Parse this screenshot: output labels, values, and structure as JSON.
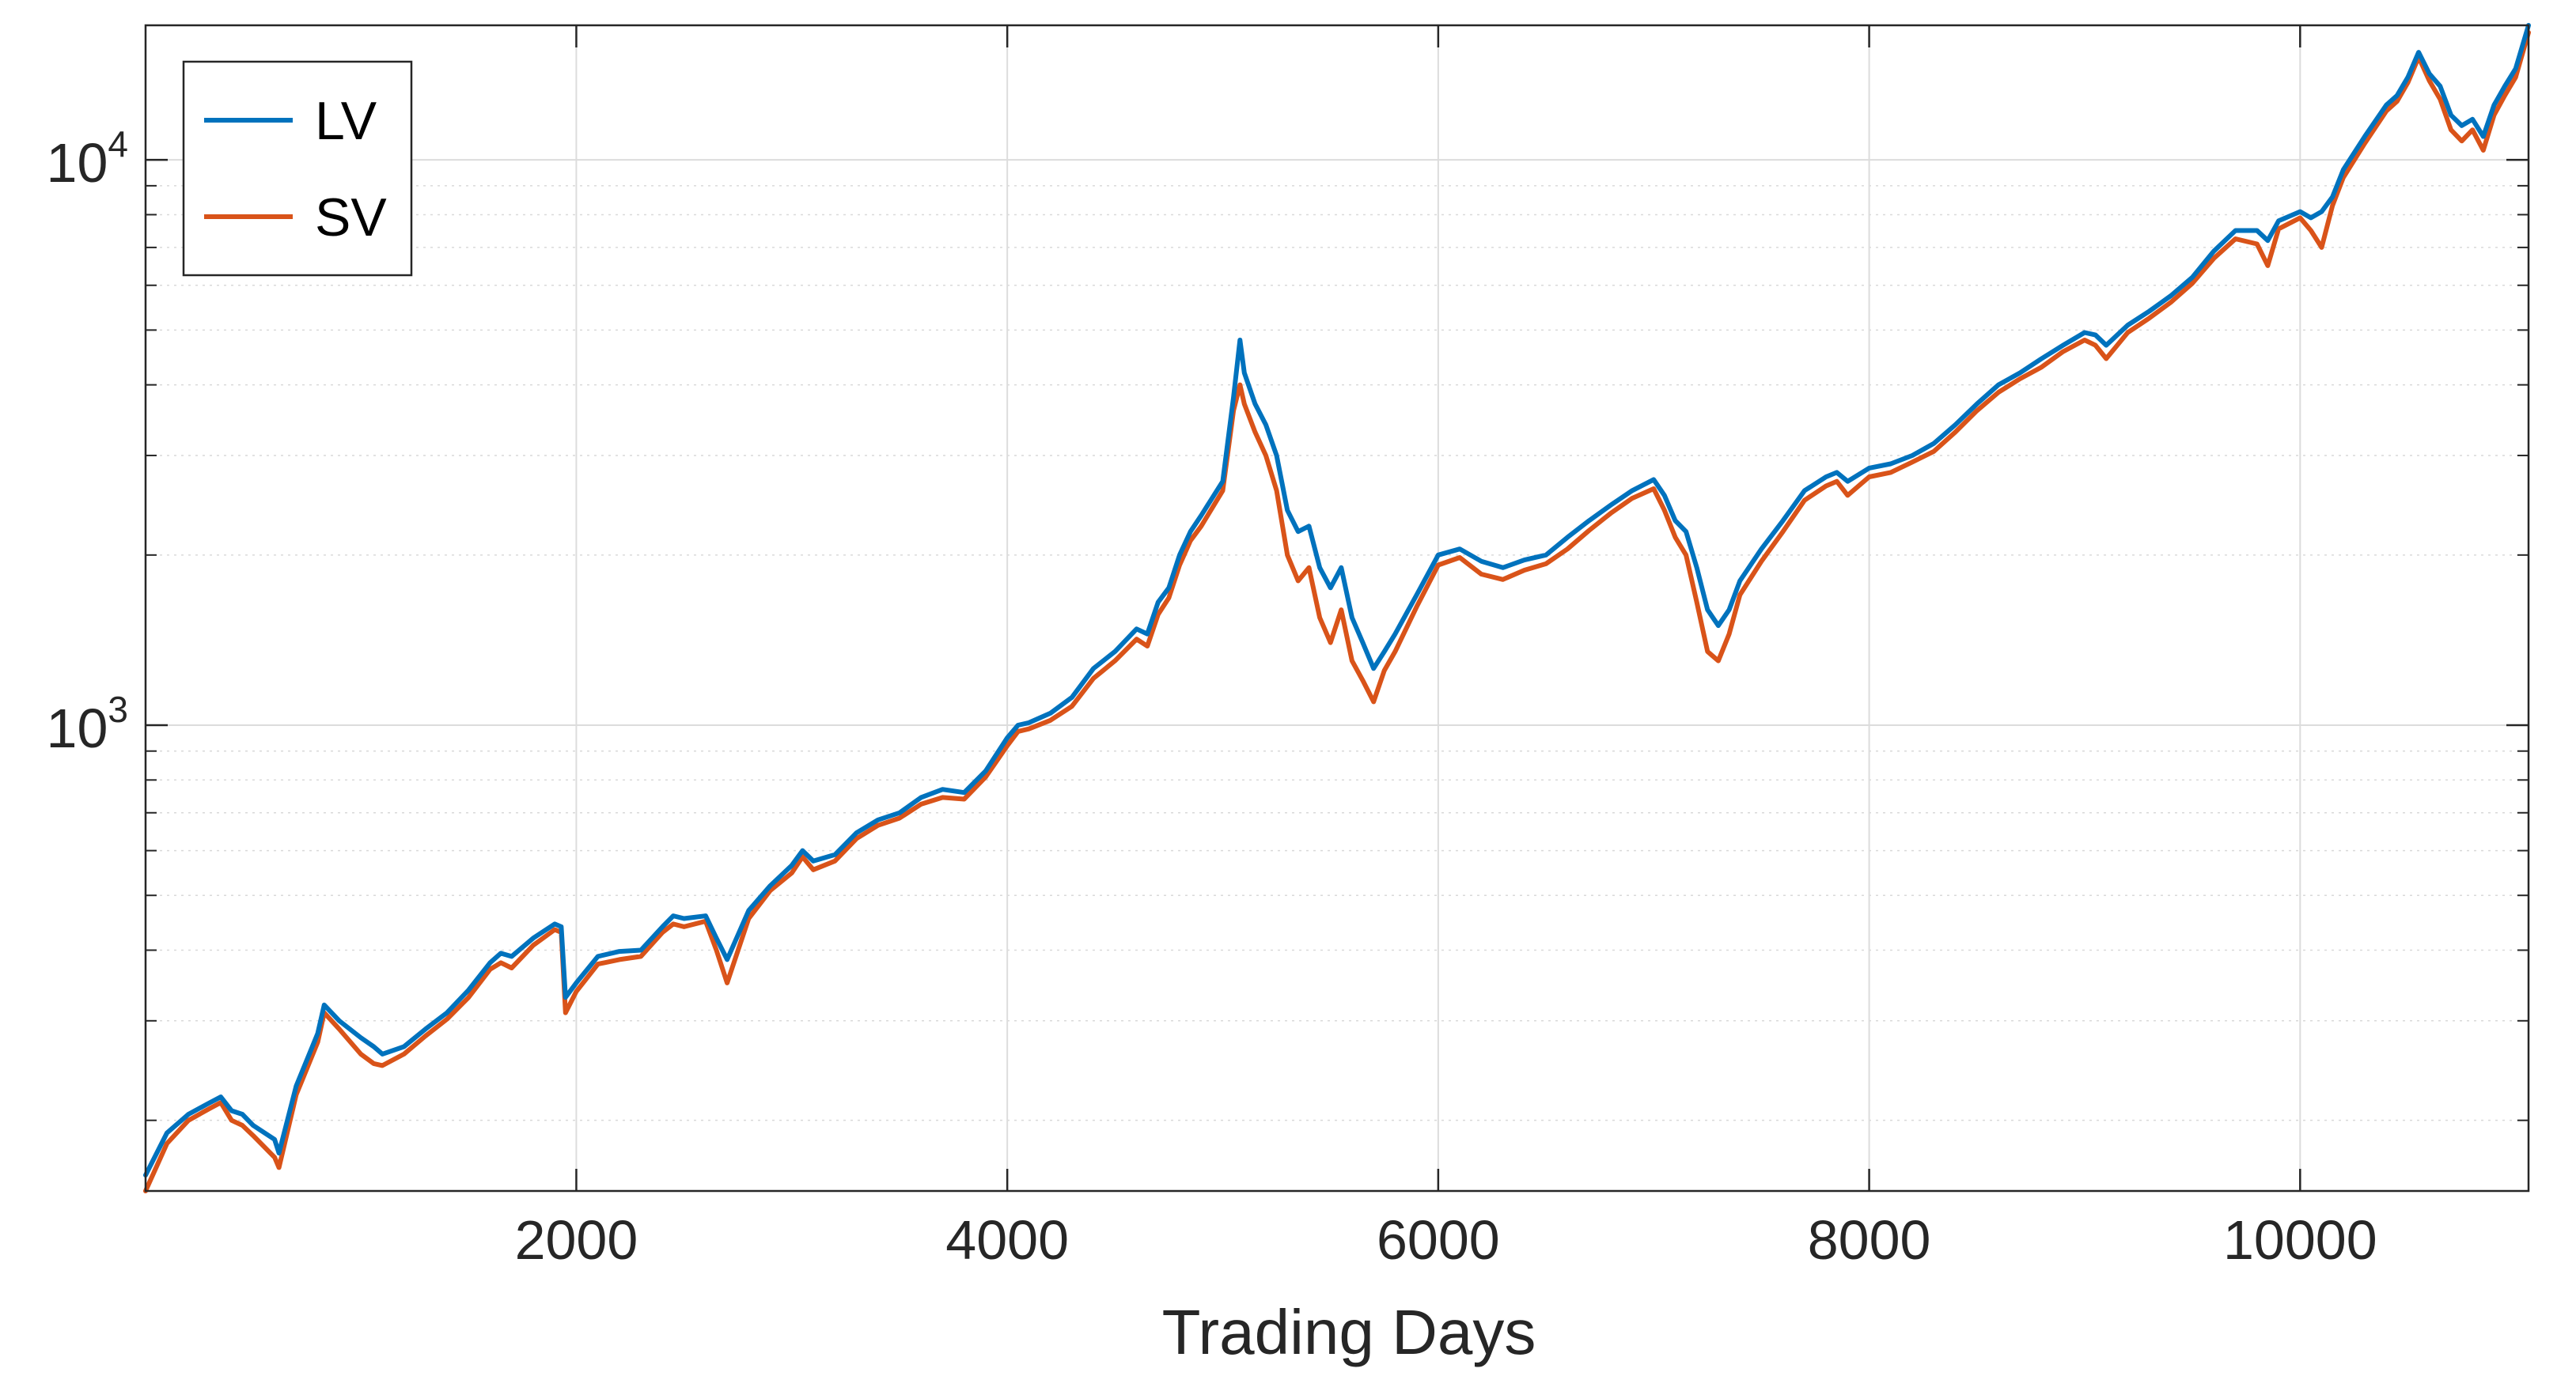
{
  "chart_data": {
    "type": "line",
    "title": "",
    "xlabel": "Trading Days",
    "ylabel": "",
    "y_scale": "log",
    "xlim": [
      1,
      11060
    ],
    "ylim": [
      150,
      17300
    ],
    "grid": true,
    "minor_grid": true,
    "legend_placement": "top-left",
    "x_ticks": [
      {
        "value": 2000,
        "label": "2000"
      },
      {
        "value": 4000,
        "label": "4000"
      },
      {
        "value": 6000,
        "label": "6000"
      },
      {
        "value": 8000,
        "label": "8000"
      },
      {
        "value": 10000,
        "label": "10000"
      }
    ],
    "y_ticks": [
      {
        "value": 1000,
        "base": "10",
        "exp": "3"
      },
      {
        "value": 10000,
        "base": "10",
        "exp": "4"
      }
    ],
    "series": [
      {
        "name": "LV",
        "color": "#0072BD",
        "points": [
          [
            1,
            160
          ],
          [
            100,
            190
          ],
          [
            200,
            205
          ],
          [
            300,
            215
          ],
          [
            350,
            220
          ],
          [
            400,
            208
          ],
          [
            450,
            205
          ],
          [
            500,
            196
          ],
          [
            600,
            185
          ],
          [
            620,
            175
          ],
          [
            700,
            230
          ],
          [
            800,
            285
          ],
          [
            830,
            320
          ],
          [
            900,
            300
          ],
          [
            1000,
            280
          ],
          [
            1060,
            270
          ],
          [
            1100,
            262
          ],
          [
            1200,
            270
          ],
          [
            1300,
            290
          ],
          [
            1400,
            310
          ],
          [
            1500,
            340
          ],
          [
            1600,
            380
          ],
          [
            1650,
            395
          ],
          [
            1700,
            390
          ],
          [
            1800,
            420
          ],
          [
            1900,
            445
          ],
          [
            1930,
            440
          ],
          [
            1950,
            330
          ],
          [
            2000,
            350
          ],
          [
            2100,
            390
          ],
          [
            2200,
            398
          ],
          [
            2300,
            400
          ],
          [
            2400,
            440
          ],
          [
            2450,
            460
          ],
          [
            2500,
            455
          ],
          [
            2600,
            460
          ],
          [
            2650,
            420
          ],
          [
            2700,
            385
          ],
          [
            2800,
            470
          ],
          [
            2900,
            520
          ],
          [
            3000,
            565
          ],
          [
            3050,
            600
          ],
          [
            3100,
            575
          ],
          [
            3200,
            590
          ],
          [
            3300,
            645
          ],
          [
            3400,
            680
          ],
          [
            3500,
            700
          ],
          [
            3600,
            745
          ],
          [
            3700,
            770
          ],
          [
            3800,
            760
          ],
          [
            3900,
            830
          ],
          [
            4000,
            950
          ],
          [
            4050,
            1000
          ],
          [
            4100,
            1010
          ],
          [
            4200,
            1050
          ],
          [
            4300,
            1120
          ],
          [
            4400,
            1260
          ],
          [
            4500,
            1350
          ],
          [
            4600,
            1480
          ],
          [
            4650,
            1450
          ],
          [
            4700,
            1650
          ],
          [
            4750,
            1750
          ],
          [
            4800,
            2000
          ],
          [
            4850,
            2200
          ],
          [
            4900,
            2350
          ],
          [
            5000,
            2700
          ],
          [
            5050,
            3800
          ],
          [
            5080,
            4800
          ],
          [
            5100,
            4200
          ],
          [
            5150,
            3700
          ],
          [
            5200,
            3400
          ],
          [
            5250,
            3000
          ],
          [
            5300,
            2400
          ],
          [
            5350,
            2200
          ],
          [
            5400,
            2250
          ],
          [
            5450,
            1900
          ],
          [
            5500,
            1750
          ],
          [
            5550,
            1900
          ],
          [
            5600,
            1550
          ],
          [
            5650,
            1400
          ],
          [
            5700,
            1260
          ],
          [
            5750,
            1350
          ],
          [
            5800,
            1450
          ],
          [
            5900,
            1700
          ],
          [
            6000,
            2000
          ],
          [
            6100,
            2050
          ],
          [
            6200,
            1950
          ],
          [
            6300,
            1900
          ],
          [
            6400,
            1960
          ],
          [
            6500,
            2000
          ],
          [
            6600,
            2150
          ],
          [
            6700,
            2300
          ],
          [
            6800,
            2450
          ],
          [
            6900,
            2600
          ],
          [
            7000,
            2720
          ],
          [
            7050,
            2550
          ],
          [
            7100,
            2300
          ],
          [
            7150,
            2200
          ],
          [
            7200,
            1900
          ],
          [
            7250,
            1600
          ],
          [
            7300,
            1500
          ],
          [
            7350,
            1600
          ],
          [
            7400,
            1800
          ],
          [
            7500,
            2050
          ],
          [
            7600,
            2300
          ],
          [
            7700,
            2600
          ],
          [
            7800,
            2750
          ],
          [
            7850,
            2800
          ],
          [
            7900,
            2700
          ],
          [
            8000,
            2850
          ],
          [
            8100,
            2900
          ],
          [
            8200,
            3000
          ],
          [
            8300,
            3150
          ],
          [
            8400,
            3400
          ],
          [
            8500,
            3700
          ],
          [
            8600,
            4000
          ],
          [
            8700,
            4200
          ],
          [
            8800,
            4450
          ],
          [
            8900,
            4700
          ],
          [
            9000,
            4950
          ],
          [
            9050,
            4900
          ],
          [
            9100,
            4700
          ],
          [
            9200,
            5100
          ],
          [
            9300,
            5400
          ],
          [
            9400,
            5750
          ],
          [
            9500,
            6200
          ],
          [
            9600,
            6900
          ],
          [
            9700,
            7500
          ],
          [
            9800,
            7500
          ],
          [
            9850,
            7200
          ],
          [
            9900,
            7800
          ],
          [
            10000,
            8100
          ],
          [
            10050,
            7900
          ],
          [
            10100,
            8100
          ],
          [
            10150,
            8600
          ],
          [
            10200,
            9600
          ],
          [
            10300,
            11000
          ],
          [
            10400,
            12500
          ],
          [
            10450,
            13000
          ],
          [
            10500,
            14000
          ],
          [
            10550,
            15500
          ],
          [
            10600,
            14200
          ],
          [
            10650,
            13500
          ],
          [
            10700,
            12000
          ],
          [
            10750,
            11500
          ],
          [
            10800,
            11800
          ],
          [
            10850,
            11000
          ],
          [
            10900,
            12500
          ],
          [
            10950,
            13500
          ],
          [
            11000,
            14500
          ],
          [
            11060,
            17300
          ]
        ]
      },
      {
        "name": "SV",
        "color": "#D95319",
        "points": [
          [
            1,
            150
          ],
          [
            100,
            182
          ],
          [
            200,
            200
          ],
          [
            300,
            210
          ],
          [
            350,
            215
          ],
          [
            400,
            200
          ],
          [
            450,
            196
          ],
          [
            500,
            188
          ],
          [
            600,
            172
          ],
          [
            620,
            165
          ],
          [
            700,
            222
          ],
          [
            800,
            275
          ],
          [
            830,
            310
          ],
          [
            900,
            290
          ],
          [
            1000,
            262
          ],
          [
            1060,
            252
          ],
          [
            1100,
            250
          ],
          [
            1200,
            262
          ],
          [
            1300,
            282
          ],
          [
            1400,
            302
          ],
          [
            1500,
            330
          ],
          [
            1600,
            370
          ],
          [
            1650,
            380
          ],
          [
            1700,
            372
          ],
          [
            1800,
            408
          ],
          [
            1900,
            435
          ],
          [
            1930,
            430
          ],
          [
            1950,
            310
          ],
          [
            2000,
            338
          ],
          [
            2100,
            378
          ],
          [
            2200,
            385
          ],
          [
            2300,
            390
          ],
          [
            2400,
            430
          ],
          [
            2450,
            445
          ],
          [
            2500,
            440
          ],
          [
            2600,
            450
          ],
          [
            2650,
            400
          ],
          [
            2700,
            350
          ],
          [
            2800,
            455
          ],
          [
            2900,
            510
          ],
          [
            3000,
            548
          ],
          [
            3050,
            585
          ],
          [
            3100,
            555
          ],
          [
            3200,
            575
          ],
          [
            3300,
            630
          ],
          [
            3400,
            665
          ],
          [
            3500,
            685
          ],
          [
            3600,
            725
          ],
          [
            3700,
            745
          ],
          [
            3800,
            740
          ],
          [
            3900,
            810
          ],
          [
            4000,
            920
          ],
          [
            4050,
            975
          ],
          [
            4100,
            985
          ],
          [
            4200,
            1020
          ],
          [
            4300,
            1080
          ],
          [
            4400,
            1210
          ],
          [
            4500,
            1300
          ],
          [
            4600,
            1420
          ],
          [
            4650,
            1380
          ],
          [
            4700,
            1570
          ],
          [
            4750,
            1680
          ],
          [
            4800,
            1920
          ],
          [
            4850,
            2120
          ],
          [
            4900,
            2250
          ],
          [
            5000,
            2600
          ],
          [
            5050,
            3600
          ],
          [
            5080,
            4000
          ],
          [
            5100,
            3700
          ],
          [
            5150,
            3300
          ],
          [
            5200,
            3000
          ],
          [
            5250,
            2600
          ],
          [
            5300,
            2000
          ],
          [
            5350,
            1800
          ],
          [
            5400,
            1900
          ],
          [
            5450,
            1550
          ],
          [
            5500,
            1400
          ],
          [
            5550,
            1600
          ],
          [
            5600,
            1300
          ],
          [
            5650,
            1200
          ],
          [
            5700,
            1100
          ],
          [
            5750,
            1250
          ],
          [
            5800,
            1350
          ],
          [
            5900,
            1620
          ],
          [
            6000,
            1920
          ],
          [
            6100,
            1980
          ],
          [
            6200,
            1850
          ],
          [
            6300,
            1810
          ],
          [
            6400,
            1880
          ],
          [
            6500,
            1930
          ],
          [
            6600,
            2050
          ],
          [
            6700,
            2210
          ],
          [
            6800,
            2370
          ],
          [
            6900,
            2520
          ],
          [
            7000,
            2620
          ],
          [
            7050,
            2400
          ],
          [
            7100,
            2150
          ],
          [
            7150,
            2000
          ],
          [
            7200,
            1650
          ],
          [
            7250,
            1350
          ],
          [
            7300,
            1300
          ],
          [
            7350,
            1450
          ],
          [
            7400,
            1700
          ],
          [
            7500,
            1950
          ],
          [
            7600,
            2200
          ],
          [
            7700,
            2500
          ],
          [
            7800,
            2650
          ],
          [
            7850,
            2700
          ],
          [
            7900,
            2550
          ],
          [
            8000,
            2750
          ],
          [
            8100,
            2800
          ],
          [
            8200,
            2920
          ],
          [
            8300,
            3050
          ],
          [
            8400,
            3300
          ],
          [
            8500,
            3600
          ],
          [
            8600,
            3880
          ],
          [
            8700,
            4100
          ],
          [
            8800,
            4300
          ],
          [
            8900,
            4580
          ],
          [
            9000,
            4800
          ],
          [
            9050,
            4700
          ],
          [
            9100,
            4450
          ],
          [
            9200,
            4950
          ],
          [
            9300,
            5250
          ],
          [
            9400,
            5600
          ],
          [
            9500,
            6050
          ],
          [
            9600,
            6700
          ],
          [
            9700,
            7250
          ],
          [
            9800,
            7100
          ],
          [
            9850,
            6500
          ],
          [
            9900,
            7550
          ],
          [
            10000,
            7900
          ],
          [
            10050,
            7500
          ],
          [
            10100,
            7000
          ],
          [
            10150,
            8300
          ],
          [
            10200,
            9300
          ],
          [
            10300,
            10700
          ],
          [
            10400,
            12200
          ],
          [
            10450,
            12700
          ],
          [
            10500,
            13700
          ],
          [
            10550,
            15200
          ],
          [
            10600,
            13800
          ],
          [
            10650,
            12800
          ],
          [
            10700,
            11300
          ],
          [
            10750,
            10800
          ],
          [
            10800,
            11300
          ],
          [
            10850,
            10400
          ],
          [
            10900,
            12000
          ],
          [
            10950,
            13000
          ],
          [
            11000,
            14000
          ],
          [
            11060,
            16800
          ]
        ]
      }
    ]
  }
}
